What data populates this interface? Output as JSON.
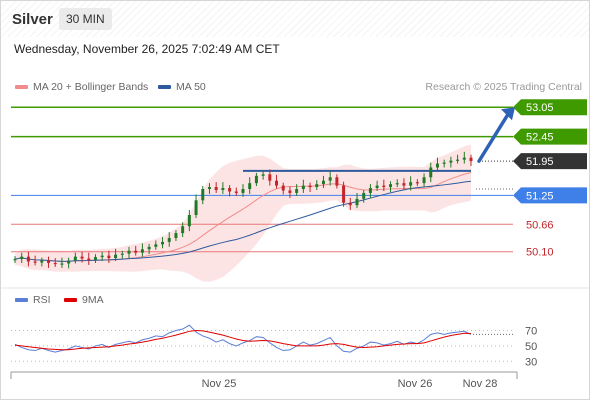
{
  "header": {
    "symbol": "Silver",
    "timeframe": "30 MIN",
    "timestamp": "Wednesday, November 26, 2025 7:02:49 AM CET"
  },
  "legend": {
    "ma20_bb": {
      "label": "MA 20 + Bollinger Bands",
      "color": "#f28b8b"
    },
    "ma50": {
      "label": "MA 50",
      "color": "#2e5b9e"
    },
    "rsi": {
      "label": "RSI",
      "color": "#5b7fd6"
    },
    "rsi_ma": {
      "label": "9MA",
      "color": "#e00000"
    }
  },
  "source_text": "Research © 2025 Trading Central",
  "colors": {
    "resistance": "#3f9a00",
    "current_price": "#333333",
    "pivot": "#3f7fe8",
    "support": "#e8787a",
    "candle_up": "#1f7a28",
    "candle_down": "#c0262b",
    "bollinger_fill": "#fde4e4",
    "forecast_arrow": "#2e62b6",
    "rsi_line": "#5b7fd6",
    "rsi_ma_line": "#e00000"
  },
  "chart_data": [
    {
      "type": "candlestick",
      "title": "",
      "ylim": [
        49.4,
        53.3
      ],
      "x_tick_labels": [
        "Nov 25",
        "Nov 26",
        "Nov 28"
      ],
      "levels": [
        {
          "name": "resistance",
          "value": 53.05,
          "label": "53.05"
        },
        {
          "name": "resistance",
          "value": 52.45,
          "label": "52.45"
        },
        {
          "name": "current",
          "value": 51.95,
          "label": "51.95"
        },
        {
          "name": "pivot",
          "value": 51.25,
          "label": "51.25"
        },
        {
          "name": "support",
          "value": 50.66,
          "label": "50.66"
        },
        {
          "name": "support",
          "value": 50.1,
          "label": "50.10"
        }
      ],
      "forecast": {
        "from": 51.95,
        "to": 53.05,
        "direction": "up"
      },
      "channel_top": 51.75,
      "candles_close": [
        49.95,
        50.0,
        49.9,
        49.88,
        49.92,
        49.87,
        49.85,
        49.86,
        49.92,
        50.0,
        49.96,
        49.93,
        49.99,
        50.02,
        49.97,
        50.04,
        50.06,
        50.12,
        50.08,
        50.15,
        50.2,
        50.25,
        50.3,
        50.38,
        50.48,
        50.62,
        50.85,
        51.15,
        51.38,
        51.42,
        51.36,
        51.4,
        51.33,
        51.3,
        51.38,
        51.5,
        51.65,
        51.68,
        51.55,
        51.45,
        51.35,
        51.3,
        51.38,
        51.45,
        51.42,
        51.48,
        51.55,
        51.62,
        51.45,
        51.1,
        51.05,
        51.18,
        51.3,
        51.4,
        51.45,
        51.42,
        51.48,
        51.5,
        51.45,
        51.52,
        51.5,
        51.62,
        51.82,
        51.9,
        51.92,
        51.96,
        51.98,
        52.02,
        51.95
      ]
    },
    {
      "type": "line",
      "title": "",
      "ylim": [
        20,
        85
      ],
      "y_ticks": [
        30,
        50,
        70
      ],
      "series": [
        {
          "name": "RSI",
          "values": [
            52,
            48,
            45,
            44,
            47,
            44,
            42,
            44,
            46,
            50,
            48,
            46,
            50,
            52,
            48,
            52,
            54,
            56,
            54,
            58,
            60,
            63,
            62,
            67,
            70,
            72,
            77,
            68,
            63,
            60,
            55,
            58,
            53,
            50,
            54,
            57,
            62,
            61,
            54,
            48,
            44,
            45,
            50,
            55,
            51,
            53,
            57,
            61,
            50,
            43,
            42,
            47,
            50,
            55,
            54,
            51,
            53,
            56,
            52,
            55,
            53,
            58,
            65,
            67,
            65,
            67,
            68,
            69,
            65
          ]
        },
        {
          "name": "9MA",
          "values": [
            51,
            50,
            49,
            48,
            47,
            46,
            45.5,
            45,
            45,
            46,
            47,
            47.5,
            48,
            48.5,
            49,
            50,
            51,
            52.5,
            53.5,
            55,
            56.5,
            58.5,
            60,
            62,
            64,
            66.5,
            69,
            70,
            69.5,
            68,
            66,
            64,
            61.5,
            59,
            57,
            56,
            56.5,
            57,
            56.5,
            55,
            53,
            51.5,
            50,
            50,
            50,
            50,
            51,
            52.5,
            53,
            52,
            50,
            48.5,
            48,
            48.5,
            49,
            50,
            51,
            52,
            52.5,
            53,
            53,
            54,
            56.5,
            59,
            61.5,
            63.5,
            65,
            66.5,
            66
          ]
        }
      ]
    }
  ]
}
